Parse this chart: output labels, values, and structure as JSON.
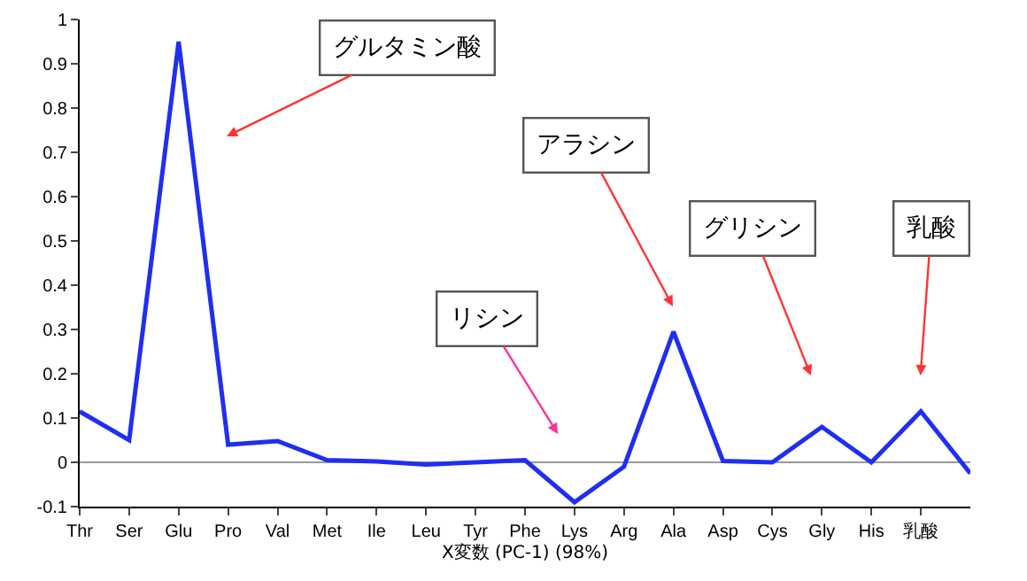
{
  "chart_data": {
    "type": "line",
    "xlabel": "X変数 (PC-1) (98%)",
    "categories": [
      "Thr",
      "Ser",
      "Glu",
      "Pro",
      "Val",
      "Met",
      "Ile",
      "Leu",
      "Tyr",
      "Phe",
      "Lys",
      "Arg",
      "Ala",
      "Asp",
      "Cys",
      "Gly",
      "His",
      "乳酸",
      null
    ],
    "series": [
      {
        "color": "#1f2ff0",
        "values": [
          0.115,
          0.05,
          0.95,
          0.04,
          0.048,
          0.005,
          0.002,
          -0.005,
          0.0,
          0.005,
          -0.09,
          -0.01,
          0.295,
          0.003,
          0.0,
          0.08,
          0.0,
          0.115,
          -0.025
        ]
      }
    ],
    "ylim": [
      -0.1,
      1
    ],
    "yticks": [
      -0.1,
      0,
      0.1,
      0.2,
      0.3,
      0.4,
      0.5,
      0.6,
      0.7,
      0.8,
      0.9,
      1
    ],
    "grid": false,
    "marker": "none",
    "line_style": "solid",
    "ref_lines": [
      {
        "axis": "y",
        "value": 0,
        "color": "#999999"
      }
    ],
    "annotations": [
      "グルタミン酸",
      "リシン",
      "アラシン",
      "グリシン",
      "乳酸"
    ]
  }
}
